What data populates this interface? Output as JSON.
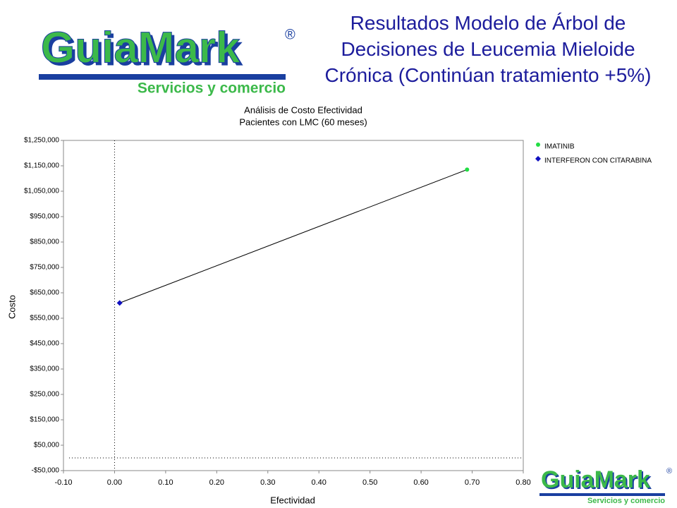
{
  "slide_title": "Resultados Modelo de Árbol de Decisiones de Leucemia Mieloide Crónica (Continúan tratamiento +5%)",
  "logo": {
    "name": "GuiaMark",
    "registered": "®",
    "tagline": "Servicios y comercio"
  },
  "chart_data": {
    "type": "scatter",
    "title": [
      "Análisis de Costo Efectividad",
      "Pacientes con LMC (60 meses)"
    ],
    "x_label": "Efectividad",
    "y_label": "Costo",
    "series": [
      {
        "name": "IMATINIB",
        "color": "#22dd44",
        "marker": "circle",
        "x": [
          0.69
        ],
        "values": [
          1135000
        ]
      },
      {
        "name": "INTERFERON CON CITARABINA",
        "color": "#1010c0",
        "marker": "diamond",
        "x": [
          0.01
        ],
        "values": [
          610000
        ]
      }
    ],
    "connect_points": true,
    "xlim": [
      -0.1,
      0.8
    ],
    "xticks": [
      {
        "value": -0.1,
        "label": "-0.10"
      },
      {
        "value": 0,
        "label": "0.00"
      },
      {
        "value": 0.1,
        "label": "0.10"
      },
      {
        "value": 0.2,
        "label": "0.20"
      },
      {
        "value": 0.3,
        "label": "0.30"
      },
      {
        "value": 0.4,
        "label": "0.40"
      },
      {
        "value": 0.5,
        "label": "0.50"
      },
      {
        "value": 0.6,
        "label": "0.60"
      },
      {
        "value": 0.7,
        "label": "0.70"
      },
      {
        "value": 0.8,
        "label": "0.80"
      }
    ],
    "ylim": [
      -50000,
      1250000
    ],
    "yticks": [
      {
        "value": -50000,
        "label": "-$50,000"
      },
      {
        "value": 50000,
        "label": "$50,000"
      },
      {
        "value": 150000,
        "label": "$150,000"
      },
      {
        "value": 250000,
        "label": "$250,000"
      },
      {
        "value": 350000,
        "label": "$350,000"
      },
      {
        "value": 450000,
        "label": "$450,000"
      },
      {
        "value": 550000,
        "label": "$550,000"
      },
      {
        "value": 650000,
        "label": "$650,000"
      },
      {
        "value": 750000,
        "label": "$750,000"
      },
      {
        "value": 850000,
        "label": "$850,000"
      },
      {
        "value": 950000,
        "label": "$950,000"
      },
      {
        "value": 1050000,
        "label": "$1,050,000"
      },
      {
        "value": 1150000,
        "label": "$1,150,000"
      },
      {
        "value": 1250000,
        "label": "$1,250,000"
      }
    ],
    "zero_lines": true,
    "legend": "right"
  }
}
